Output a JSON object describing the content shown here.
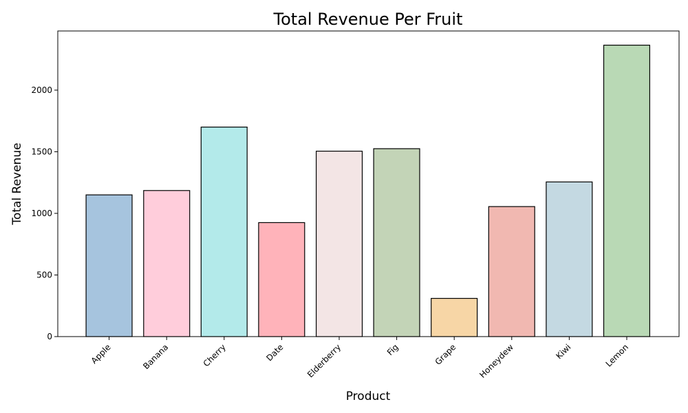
{
  "chart_data": {
    "type": "bar",
    "title": "Total Revenue Per Fruit",
    "xlabel": "Product",
    "ylabel": "Total Revenue",
    "categories": [
      "Apple",
      "Banana",
      "Cherry",
      "Date",
      "Elderberry",
      "Fig",
      "Grape",
      "Honeydew",
      "Kiwi",
      "Lemon"
    ],
    "values": [
      1150,
      1185,
      1700,
      925,
      1505,
      1525,
      310,
      1055,
      1255,
      2365
    ],
    "colors": [
      "#a6c4de",
      "#ffcddb",
      "#b3eaea",
      "#ffb3ba",
      "#f3e5e5",
      "#c3d4b7",
      "#f7d6a6",
      "#f1b8b1",
      "#c4d9e2",
      "#b9d9b5"
    ],
    "bar_edge_color": "#000000",
    "ylim": [
      0,
      2480
    ],
    "yticks": [
      0,
      500,
      1000,
      1500,
      2000
    ],
    "grid": false,
    "legend": "none"
  }
}
